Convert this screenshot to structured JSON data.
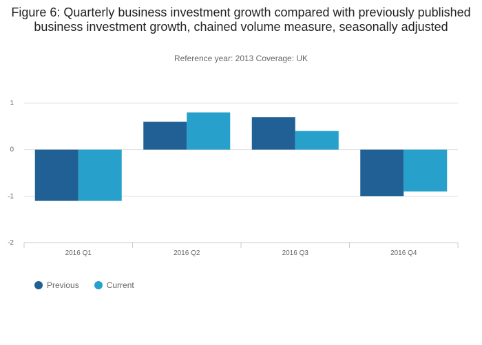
{
  "title": "Figure 6: Quarterly business investment growth compared with previously published business investment growth, chained volume measure, seasonally adjusted",
  "subtitle": "Reference year: 2013 Coverage: UK",
  "colors": {
    "previous": "#206095",
    "current": "#27a0cc"
  },
  "chart_data": {
    "type": "bar",
    "categories": [
      "2016 Q1",
      "2016 Q2",
      "2016 Q3",
      "2016 Q4"
    ],
    "series": [
      {
        "name": "Previous",
        "values": [
          -1.1,
          0.6,
          0.7,
          -1.0
        ]
      },
      {
        "name": "Current",
        "values": [
          -1.1,
          0.8,
          0.4,
          -0.9
        ]
      }
    ],
    "ylim": [
      -2,
      1
    ],
    "yticks": [
      "1",
      "0",
      "-1",
      "-2"
    ],
    "grid": true,
    "legend": "bottom-left"
  }
}
